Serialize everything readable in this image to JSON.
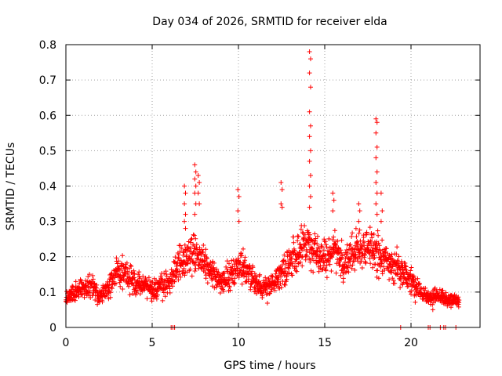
{
  "chart_data": {
    "type": "scatter",
    "title": "Day 034 of 2026, SRMTID for receiver elda",
    "xlabel": "GPS time / hours",
    "ylabel": "SRMTID / TECUs",
    "xlim": [
      0,
      24
    ],
    "ylim": [
      0,
      0.8
    ],
    "x_ticks": [
      0,
      5,
      10,
      15,
      20
    ],
    "y_ticks": [
      0,
      0.1,
      0.2,
      0.3,
      0.4,
      0.5,
      0.6,
      0.7,
      0.8
    ],
    "x_tick_labels": [
      "0",
      "5",
      "10",
      "15",
      "20"
    ],
    "y_tick_labels": [
      "0",
      "0.1",
      "0.2",
      "0.3",
      "0.4",
      "0.5",
      "0.6",
      "0.7",
      "0.8"
    ],
    "grid": true,
    "marker": "plus",
    "series_color": "#ff0000",
    "profile": [
      [
        0.0,
        0.08
      ],
      [
        0.5,
        0.1
      ],
      [
        1.0,
        0.11
      ],
      [
        1.5,
        0.12
      ],
      [
        2.0,
        0.09
      ],
      [
        2.5,
        0.11
      ],
      [
        3.0,
        0.16
      ],
      [
        3.5,
        0.15
      ],
      [
        4.0,
        0.13
      ],
      [
        4.5,
        0.12
      ],
      [
        5.0,
        0.11
      ],
      [
        5.5,
        0.12
      ],
      [
        6.0,
        0.13
      ],
      [
        6.5,
        0.18
      ],
      [
        7.0,
        0.2
      ],
      [
        7.5,
        0.21
      ],
      [
        8.0,
        0.19
      ],
      [
        8.5,
        0.15
      ],
      [
        9.0,
        0.13
      ],
      [
        9.5,
        0.14
      ],
      [
        10.0,
        0.18
      ],
      [
        10.5,
        0.16
      ],
      [
        11.0,
        0.13
      ],
      [
        11.5,
        0.11
      ],
      [
        12.0,
        0.12
      ],
      [
        12.5,
        0.15
      ],
      [
        13.0,
        0.19
      ],
      [
        13.5,
        0.22
      ],
      [
        14.0,
        0.24
      ],
      [
        14.5,
        0.2
      ],
      [
        15.0,
        0.2
      ],
      [
        15.5,
        0.22
      ],
      [
        16.0,
        0.18
      ],
      [
        16.5,
        0.2
      ],
      [
        17.0,
        0.22
      ],
      [
        17.5,
        0.23
      ],
      [
        18.0,
        0.21
      ],
      [
        18.5,
        0.19
      ],
      [
        19.0,
        0.17
      ],
      [
        19.5,
        0.16
      ],
      [
        20.0,
        0.13
      ],
      [
        20.5,
        0.1
      ],
      [
        21.0,
        0.08
      ],
      [
        21.5,
        0.09
      ],
      [
        22.0,
        0.08
      ],
      [
        22.5,
        0.08
      ],
      [
        22.8,
        0.07
      ]
    ],
    "spikes": [
      {
        "x": 6.9,
        "values": [
          0.4,
          0.38,
          0.35,
          0.32,
          0.3,
          0.28
        ]
      },
      {
        "x": 7.5,
        "values": [
          0.46,
          0.44,
          0.42,
          0.4,
          0.38,
          0.35,
          0.32
        ]
      },
      {
        "x": 7.7,
        "values": [
          0.43,
          0.41,
          0.38,
          0.35
        ]
      },
      {
        "x": 10.0,
        "values": [
          0.39,
          0.37,
          0.33,
          0.3
        ]
      },
      {
        "x": 12.5,
        "values": [
          0.41,
          0.39,
          0.35,
          0.34
        ]
      },
      {
        "x": 14.15,
        "values": [
          0.78,
          0.76,
          0.72,
          0.68,
          0.61,
          0.57,
          0.54,
          0.5,
          0.47,
          0.43,
          0.4,
          0.37,
          0.34
        ]
      },
      {
        "x": 15.5,
        "values": [
          0.38,
          0.36,
          0.33
        ]
      },
      {
        "x": 17.0,
        "values": [
          0.35,
          0.33,
          0.3
        ]
      },
      {
        "x": 18.0,
        "values": [
          0.59,
          0.58,
          0.55,
          0.51,
          0.48,
          0.44,
          0.41,
          0.38,
          0.35,
          0.32
        ]
      },
      {
        "x": 18.3,
        "values": [
          0.38,
          0.33,
          0.3
        ]
      }
    ],
    "baseline_x": [
      6.1,
      6.2,
      6.3,
      19.4,
      21.0,
      21.1,
      21.7,
      21.9,
      22.0,
      22.6
    ]
  }
}
